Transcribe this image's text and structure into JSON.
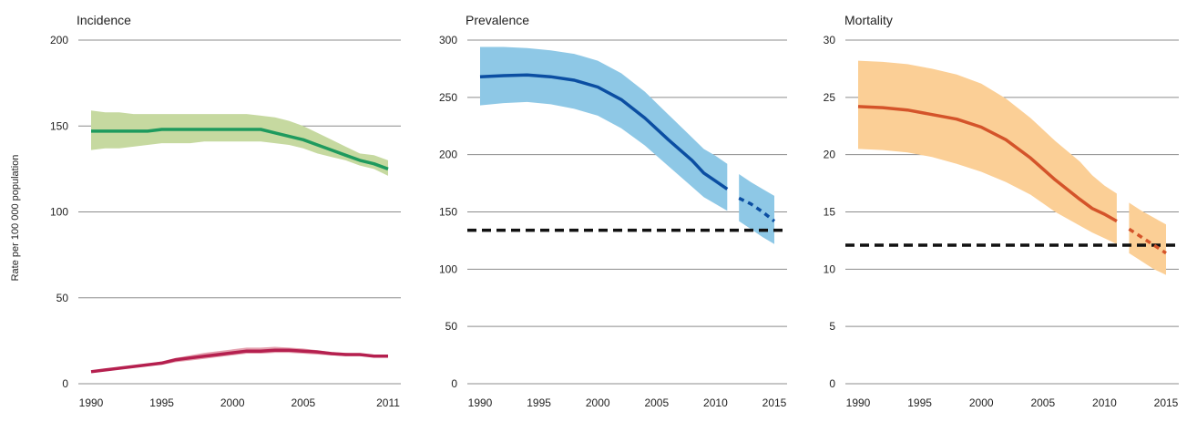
{
  "y_axis_label": "Rate per 100 000 population",
  "chart_data": [
    {
      "type": "line",
      "title": "Incidence",
      "ylim": [
        0,
        200
      ],
      "yticks": [
        0,
        50,
        100,
        150,
        200
      ],
      "xlim": [
        1990,
        2011
      ],
      "xticks": [
        1990,
        1995,
        2000,
        2005,
        2011
      ],
      "grid": true,
      "series": [
        {
          "color": "#1e9a5e",
          "band_color": "#c6d9a0",
          "x": [
            1990,
            1991,
            1992,
            1993,
            1994,
            1995,
            1996,
            1997,
            1998,
            1999,
            2000,
            2001,
            2002,
            2003,
            2004,
            2005,
            2006,
            2007,
            2008,
            2009,
            2010,
            2011
          ],
          "values": [
            147,
            147,
            147,
            147,
            147,
            148,
            148,
            148,
            148,
            148,
            148,
            148,
            148,
            146,
            144,
            142,
            139,
            136,
            133,
            130,
            128,
            125
          ],
          "lower": [
            136,
            137,
            137,
            138,
            139,
            140,
            140,
            140,
            141,
            141,
            141,
            141,
            141,
            140,
            139,
            137,
            134,
            132,
            130,
            127,
            125,
            121
          ],
          "upper": [
            159,
            158,
            158,
            157,
            157,
            157,
            157,
            157,
            157,
            157,
            157,
            157,
            156,
            155,
            153,
            150,
            146,
            142,
            138,
            134,
            133,
            130
          ]
        },
        {
          "color": "#b5204f",
          "band_color": "#e5a2b0",
          "x": [
            1990,
            1991,
            1992,
            1993,
            1994,
            1995,
            1996,
            1997,
            1998,
            1999,
            2000,
            2001,
            2002,
            2003,
            2004,
            2005,
            2006,
            2007,
            2008,
            2009,
            2010,
            2011
          ],
          "values": [
            7,
            8,
            9,
            10,
            11,
            12,
            14,
            15,
            16,
            17,
            18,
            19,
            19,
            19.5,
            19.5,
            19,
            18.5,
            17.5,
            17,
            17,
            16,
            16
          ],
          "lower": [
            6.5,
            7.5,
            8.5,
            9.5,
            10.5,
            11,
            12.5,
            13.5,
            14.5,
            15.5,
            16.5,
            17.5,
            17.5,
            18,
            18,
            17.5,
            17,
            16.5,
            16,
            16,
            15.5,
            15.5
          ],
          "upper": [
            7.5,
            8.5,
            9.5,
            10.5,
            11.5,
            13,
            15,
            16.5,
            18,
            19,
            20,
            21,
            21,
            21.5,
            21,
            20.5,
            19.5,
            18.5,
            18,
            17.5,
            17,
            17
          ]
        }
      ]
    },
    {
      "type": "line",
      "title": "Prevalence",
      "ylim": [
        0,
        300
      ],
      "yticks": [
        0,
        50,
        100,
        150,
        200,
        250,
        300
      ],
      "xlim": [
        1990,
        2015
      ],
      "xticks": [
        1990,
        1995,
        2000,
        2005,
        2010,
        2015
      ],
      "grid": true,
      "target": 134,
      "series": [
        {
          "color": "#0b4ea2",
          "band_color": "#8ec8e6",
          "x": [
            1990,
            1992,
            1994,
            1996,
            1998,
            2000,
            2002,
            2004,
            2006,
            2008,
            2009,
            2010,
            2011
          ],
          "values": [
            268,
            269,
            269.5,
            268,
            265,
            259,
            248,
            232,
            213,
            195,
            184,
            177,
            170
          ],
          "lower": [
            243,
            245,
            246,
            244,
            240,
            234,
            223,
            208,
            190,
            172,
            163,
            157,
            151
          ],
          "upper": [
            294,
            294,
            293,
            291,
            288,
            282,
            271,
            255,
            235,
            215,
            205,
            199,
            192
          ]
        },
        {
          "color": "#0b4ea2",
          "band_color": "#8ec8e6",
          "dashed": true,
          "x": [
            2012,
            2013,
            2014,
            2015
          ],
          "values": [
            162,
            157,
            150,
            142
          ],
          "lower": [
            142,
            135,
            128,
            122
          ],
          "upper": [
            183,
            176,
            170,
            164
          ]
        }
      ]
    },
    {
      "type": "line",
      "title": "Mortality",
      "ylim": [
        0,
        30
      ],
      "yticks": [
        0,
        5,
        10,
        15,
        20,
        25,
        30
      ],
      "xlim": [
        1990,
        2015
      ],
      "xticks": [
        1990,
        1995,
        2000,
        2005,
        2010,
        2015
      ],
      "grid": true,
      "target": 12.1,
      "series": [
        {
          "color": "#d4542a",
          "band_color": "#fbcf96",
          "x": [
            1990,
            1992,
            1994,
            1996,
            1998,
            2000,
            2002,
            2004,
            2006,
            2008,
            2009,
            2010,
            2011
          ],
          "values": [
            24.2,
            24.1,
            23.9,
            23.5,
            23.1,
            22.4,
            21.3,
            19.7,
            17.8,
            16.1,
            15.3,
            14.8,
            14.2
          ],
          "lower": [
            20.5,
            20.4,
            20.2,
            19.8,
            19.2,
            18.5,
            17.6,
            16.5,
            15.0,
            13.8,
            13.2,
            12.7,
            12.2
          ],
          "upper": [
            28.2,
            28.1,
            27.9,
            27.5,
            27.0,
            26.2,
            24.9,
            23.2,
            21.2,
            19.4,
            18.2,
            17.3,
            16.6
          ]
        },
        {
          "color": "#d4542a",
          "band_color": "#fbcf96",
          "dashed": true,
          "x": [
            2012,
            2013,
            2014,
            2015
          ],
          "values": [
            13.5,
            12.8,
            12.1,
            11.4
          ],
          "lower": [
            11.4,
            10.7,
            10.0,
            9.5
          ],
          "upper": [
            15.8,
            15.1,
            14.5,
            13.9
          ]
        }
      ]
    }
  ]
}
